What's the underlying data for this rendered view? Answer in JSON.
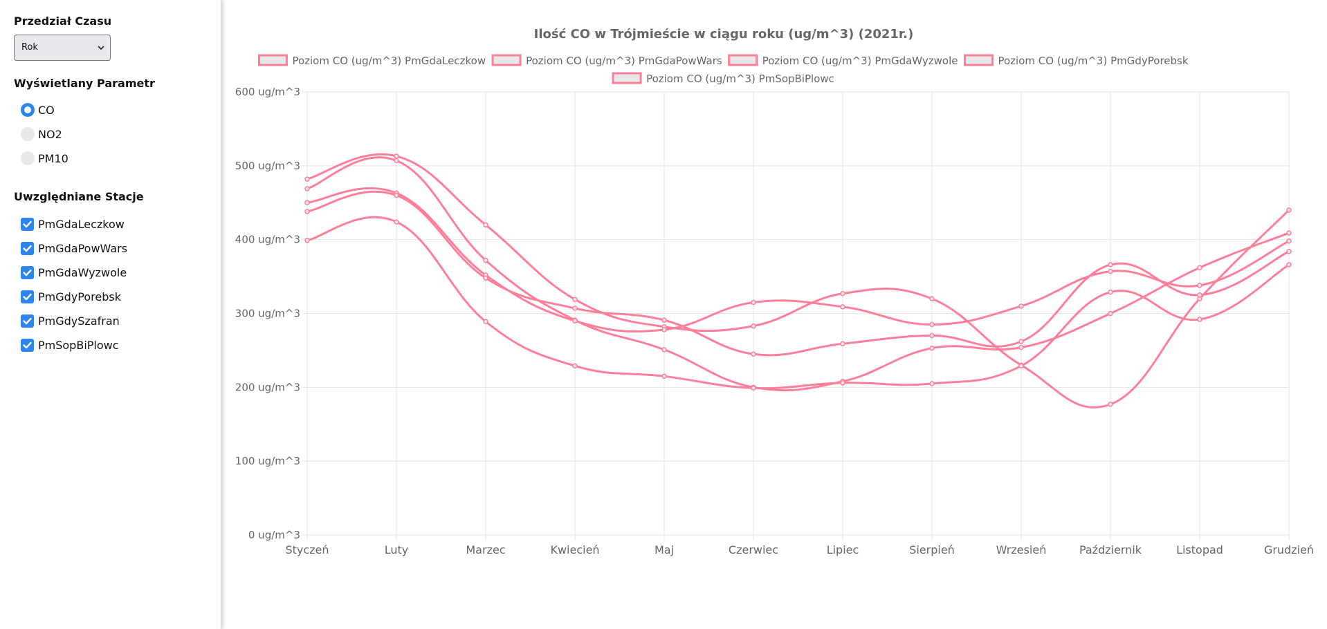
{
  "sidebar": {
    "time_range": {
      "title": "Przedział Czasu",
      "selected": "Rok"
    },
    "parameter": {
      "title": "Wyświetlany Parametr",
      "options": [
        {
          "label": "CO",
          "selected": true
        },
        {
          "label": "NO2",
          "selected": false
        },
        {
          "label": "PM10",
          "selected": false
        }
      ]
    },
    "stations": {
      "title": "Uwzględniane Stacje",
      "items": [
        {
          "label": "PmGdaLeczkow",
          "checked": true
        },
        {
          "label": "PmGdaPowWars",
          "checked": true
        },
        {
          "label": "PmGdaWyzwole",
          "checked": true
        },
        {
          "label": "PmGdyPorebsk",
          "checked": true
        },
        {
          "label": "PmGdySzafran",
          "checked": true
        },
        {
          "label": "PmSopBiPlowc",
          "checked": true
        }
      ]
    }
  },
  "colors": {
    "line": "#ff7f9b",
    "legend_fill": "#e8e8e8",
    "grid": "#e5e5e5",
    "accent": "#2b86f0"
  },
  "chart_data": {
    "type": "line",
    "title": "Ilość CO w Trójmieście w ciągu roku (ug/m^3) (2021r.)",
    "categories": [
      "Styczeń",
      "Luty",
      "Marzec",
      "Kwiecień",
      "Maj",
      "Czerwiec",
      "Lipiec",
      "Sierpień",
      "Wrzesień",
      "Październik",
      "Listopad",
      "Grudzień"
    ],
    "y_ticks": [
      "0 ug/m^3",
      "100 ug/m^3",
      "200 ug/m^3",
      "300 ug/m^3",
      "400 ug/m^3",
      "500 ug/m^3",
      "600 ug/m^3"
    ],
    "ylim": [
      0,
      600
    ],
    "grid": true,
    "legend_position": "top",
    "series": [
      {
        "name": "Poziom CO (ug/m^3) PmGdaLeczkow",
        "values": [
          482,
          513,
          420,
          319,
          282,
          283,
          327,
          320,
          230,
          177,
          320,
          440
        ]
      },
      {
        "name": "Poziom CO (ug/m^3) PmGdaPowWars",
        "values": [
          469,
          507,
          372,
          291,
          251,
          200,
          208,
          253,
          254,
          300,
          362,
          409
        ]
      },
      {
        "name": "Poziom CO (ug/m^3) PmGdaWyzwole",
        "values": [
          450,
          463,
          352,
          290,
          278,
          315,
          309,
          285,
          310,
          357,
          338,
          398
        ]
      },
      {
        "name": "Poziom CO (ug/m^3) PmGdyPorebsk",
        "values": [
          438,
          460,
          348,
          307,
          291,
          245,
          259,
          270,
          262,
          366,
          325,
          384
        ]
      },
      {
        "name": "Poziom CO (ug/m^3) PmSopBiPlowc",
        "values": [
          399,
          424,
          289,
          229,
          215,
          199,
          206,
          205,
          229,
          329,
          292,
          366
        ]
      }
    ]
  }
}
